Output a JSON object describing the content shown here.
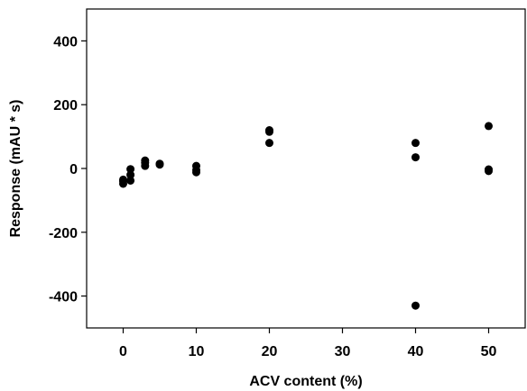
{
  "chart_data": {
    "type": "scatter",
    "title": "",
    "xlabel": "ACV content (%)",
    "ylabel": "Response (mAU * s)",
    "xlim": [
      -5,
      55
    ],
    "ylim": [
      -500,
      500
    ],
    "xticks": [
      0,
      10,
      20,
      30,
      40,
      50
    ],
    "yticks": [
      -400,
      -200,
      0,
      200,
      400
    ],
    "grid": false,
    "legend": "none",
    "marker_color": "#000000",
    "points": [
      {
        "x": 0,
        "y": -35
      },
      {
        "x": 0,
        "y": -40
      },
      {
        "x": 0,
        "y": -48
      },
      {
        "x": 1,
        "y": -2
      },
      {
        "x": 1,
        "y": -20
      },
      {
        "x": 1,
        "y": -38
      },
      {
        "x": 3,
        "y": 25
      },
      {
        "x": 3,
        "y": 18
      },
      {
        "x": 3,
        "y": 8
      },
      {
        "x": 5,
        "y": 15
      },
      {
        "x": 5,
        "y": 12
      },
      {
        "x": 10,
        "y": 8
      },
      {
        "x": 10,
        "y": -5
      },
      {
        "x": 10,
        "y": -12
      },
      {
        "x": 20,
        "y": 120
      },
      {
        "x": 20,
        "y": 115
      },
      {
        "x": 20,
        "y": 80
      },
      {
        "x": 40,
        "y": 80
      },
      {
        "x": 40,
        "y": 35
      },
      {
        "x": 40,
        "y": -430
      },
      {
        "x": 50,
        "y": 133
      },
      {
        "x": 50,
        "y": -3
      },
      {
        "x": 50,
        "y": -8
      }
    ]
  }
}
